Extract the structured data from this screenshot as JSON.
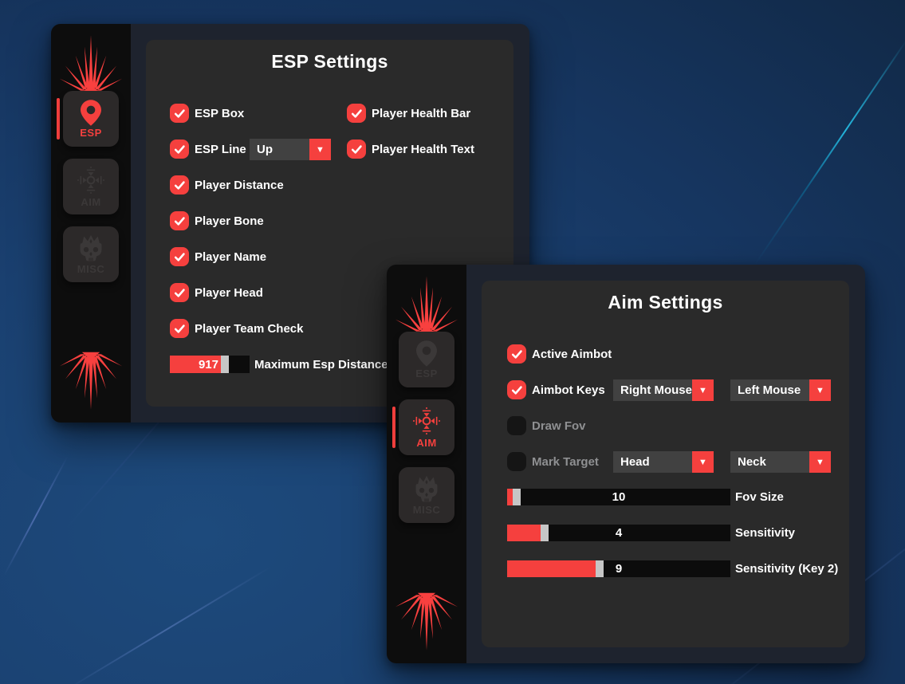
{
  "theme": {
    "accent_red": "#f5403e",
    "frame_bg": "#1e232e",
    "sidebar_bg": "#0d0d0d",
    "panel_bg": "#2a2a2a",
    "dropdown_bg": "#414141",
    "slider_track": "#0c0c0c",
    "slider_thumb": "#c6c6c6",
    "checked_label_color": "#ffffff",
    "unchecked_label_color": "#8f9092"
  },
  "icons": {
    "dropdown_arrow": "▼",
    "checkmark": "check-icon",
    "logo": "starburst-logo",
    "esp_tab": "map-pin-icon",
    "aim_tab": "ornate-crosshair-icon",
    "misc_tab": "skull-crown-icon"
  },
  "esp_window": {
    "title": "ESP Settings",
    "sidebar": {
      "active_tab": "ESP",
      "tabs": [
        {
          "label": "ESP"
        },
        {
          "label": "AIM"
        },
        {
          "label": "MISC"
        }
      ]
    },
    "left_rows": [
      {
        "label": "ESP Box",
        "checked": true
      },
      {
        "label": "ESP Line",
        "checked": true,
        "dropdown_value": "Up"
      },
      {
        "label": "Player Distance",
        "checked": true
      },
      {
        "label": "Player Bone",
        "checked": true
      },
      {
        "label": "Player Name",
        "checked": true
      },
      {
        "label": "Player Head",
        "checked": true
      },
      {
        "label": "Player Team Check",
        "checked": true
      }
    ],
    "right_rows": [
      {
        "label": "Player Health Bar",
        "checked": true
      },
      {
        "label": "Player Health Text",
        "checked": true
      }
    ],
    "slider": {
      "value": "917",
      "label": "Maximum Esp Distance",
      "fill_pct": 64
    }
  },
  "aim_window": {
    "title": "Aim Settings",
    "sidebar": {
      "active_tab": "AIM",
      "tabs": [
        {
          "label": "ESP"
        },
        {
          "label": "AIM"
        },
        {
          "label": "MISC"
        }
      ]
    },
    "rows": [
      {
        "label": "Active Aimbot",
        "checked": true
      },
      {
        "label": "Aimbot Keys",
        "checked": true,
        "dropdowns": [
          "Right Mouse",
          "Left Mouse"
        ]
      },
      {
        "label": "Draw Fov",
        "checked": false
      },
      {
        "label": "Mark Target",
        "checked": false,
        "dropdowns": [
          "Head",
          "Neck"
        ]
      }
    ],
    "sliders": [
      {
        "value": "10",
        "label": "Fov Size",
        "fill_pct": 2.5
      },
      {
        "value": "4",
        "label": "Sensitivity",
        "fill_pct": 15
      },
      {
        "value": "9",
        "label": "Sensitivity (Key 2)",
        "fill_pct": 39.5
      }
    ]
  }
}
